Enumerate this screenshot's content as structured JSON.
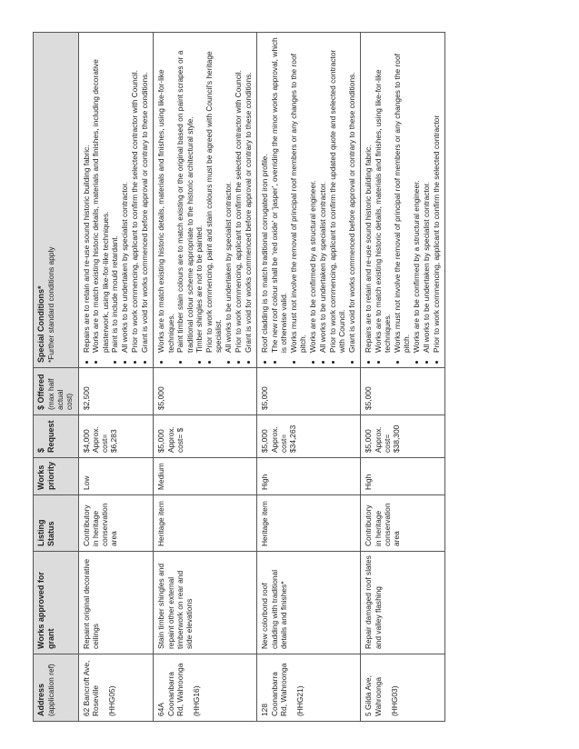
{
  "headers": {
    "address": "Address",
    "address_sub": "(application ref)",
    "works": "Works approved for grant",
    "listing": "Listing Status",
    "priority": "Works priority",
    "request": "$ Request",
    "offered": "$ Offered",
    "offered_sub": "(max half actual cost)",
    "conditions": "Special Conditions*",
    "conditions_sub": "*Further standard conditions apply"
  },
  "rows": [
    {
      "address": "62 Bancroft Ave, Roseville",
      "ref": "(HHG05)",
      "works": "Repaint original decorative ceilings",
      "listing": "Contributory in heritage conservation area",
      "priority": "Low",
      "request": "$4,000",
      "approx1": "Approx.",
      "approx2": "cost=",
      "approx3": "$6,283",
      "offered": "$2,500",
      "conditions": [
        "Repairs are to retain and re-use sound historic building fabric.",
        "Works are to match existing historic details, materials and finishes, including decorative plasterwork, using like-for-like techniques.",
        "Paint is to include mould retardant.",
        "All works to be undertaken by specialist contractor.",
        "Prior to work commencing, applicant to confirm the selected contractor with Council.",
        "Grant is void for works commenced before approval or contrary to these conditions."
      ]
    },
    {
      "address": "64A Coonanbarra Rd, Wahroonga",
      "ref": "(HHG16)",
      "works": "Stain timber shingles and repaint other external timberwork on rear and side elevations",
      "listing": "Heritage item",
      "priority": "Medium",
      "request": "$5,000",
      "approx1": "Approx.",
      "approx2": "cost= $",
      "approx3": "",
      "offered": "$5,000",
      "conditions": [
        "Works are to match existing historic details, materials and finishes, using like-for-like techniques.",
        "Paint timber stain colours are to match existing or the original based on paint scrapes or a traditional colour scheme appropriate to the historic architectural style.",
        "Timber shingles are not to be painted.",
        "Prior to work commencing, paint and stain colours must be agreed with Council's heritage specialist.",
        "All works to be undertaken by specialist contractor.",
        "Prior to work commencing, applicant to confirm the selected contractor with Council.",
        "Grant is void for works commenced before approval or contrary to these conditions."
      ]
    },
    {
      "address": "128 Coonanbarra Rd, Wahroonga",
      "ref": "(HHG21)",
      "works": "New colorbond roof cladding with traditional details and finishes*",
      "listing": "Heritage item",
      "priority": "High",
      "request": "$5,000",
      "approx1": "Approx.",
      "approx2": "cost=",
      "approx3": "$34,263",
      "offered": "$5,000",
      "conditions": [
        "Roof cladding is to match traditional corrugated iron profile.",
        "The new roof colour shall be 'red oxide' or 'jasper', overriding the minor works approval, which is otherwise valid.",
        "Works must not involve the removal of principal roof members or any changes to the roof pitch.",
        "Works are to be confirmed by a structural engineer.",
        "All works to be undertaken by specialist contractor.",
        "Prior to work commencing, applicant to confirm the updated quote and selected contractor with Council.",
        "Grant is void for works commenced before approval or contrary to these conditions."
      ]
    },
    {
      "address": "5 Gilda Ave, Wahroonga",
      "ref": "(HHG03)",
      "works": "Repair damaged roof slates and valley flashing",
      "listing": "Contributory in heritage conservation area",
      "priority": "High",
      "request": "$5,000",
      "approx1": "Approx.",
      "approx2": "cost=",
      "approx3": "$38,300",
      "offered": "$5,000",
      "conditions": [
        "Repairs are to retain and re-use sound historic building fabric.",
        "Works are to match existing historic details, materials and finishes, using like-for-like techniques.",
        "Works must not involve the removal of principal roof members or any changes to the roof pitch.",
        "Works are to be confirmed by a structural engineer.",
        "All works to be undertaken by specialist contractor.",
        "Prior to work commencing, applicant to confirm the selected contractor"
      ]
    }
  ]
}
